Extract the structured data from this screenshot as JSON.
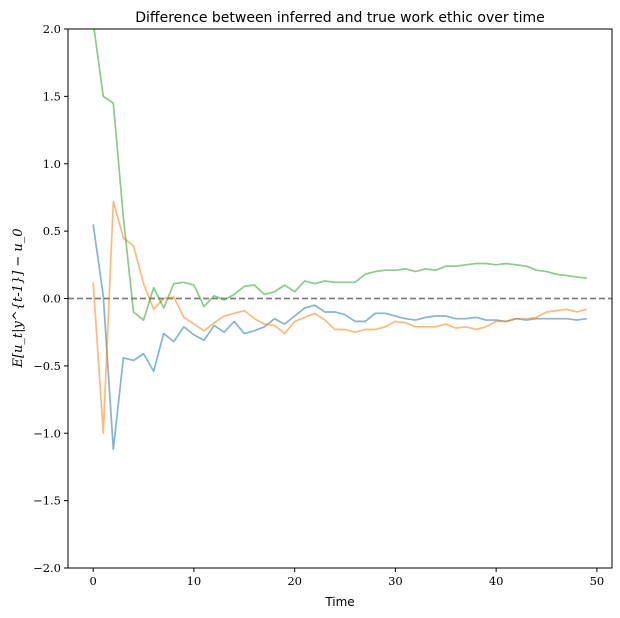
{
  "chart_data": {
    "type": "line",
    "title": "Difference between inferred and true work ethic over time",
    "xlabel": "Time",
    "ylabel": "E[u_t|y^{t-1}] − u_0",
    "xlim": [
      -2.5,
      51.5
    ],
    "ylim": [
      -2.0,
      2.0
    ],
    "xticks": [
      0,
      10,
      20,
      30,
      40,
      50
    ],
    "yticks": [
      -2.0,
      -1.5,
      -1.0,
      -0.5,
      0.0,
      0.5,
      1.0,
      1.5,
      2.0
    ],
    "grid": false,
    "legend": "none",
    "x": [
      0,
      1,
      2,
      3,
      4,
      5,
      6,
      7,
      8,
      9,
      10,
      11,
      12,
      13,
      14,
      15,
      16,
      17,
      18,
      19,
      20,
      21,
      22,
      23,
      24,
      25,
      26,
      27,
      28,
      29,
      30,
      31,
      32,
      33,
      34,
      35,
      36,
      37,
      38,
      39,
      40,
      41,
      42,
      43,
      44,
      45,
      46,
      47,
      48,
      49
    ],
    "reference_line": {
      "y": 0.0,
      "style": "dashed",
      "color": "#808080"
    },
    "series": [
      {
        "color": "#1f77b4",
        "values": [
          0.55,
          0.02,
          -1.12,
          -0.44,
          -0.46,
          -0.41,
          -0.54,
          -0.26,
          -0.32,
          -0.21,
          -0.27,
          -0.31,
          -0.2,
          -0.25,
          -0.17,
          -0.26,
          -0.24,
          -0.21,
          -0.15,
          -0.19,
          -0.13,
          -0.07,
          -0.05,
          -0.1,
          -0.1,
          -0.12,
          -0.17,
          -0.17,
          -0.11,
          -0.11,
          -0.13,
          -0.15,
          -0.16,
          -0.14,
          -0.13,
          -0.13,
          -0.15,
          -0.15,
          -0.14,
          -0.16,
          -0.16,
          -0.17,
          -0.15,
          -0.16,
          -0.15,
          -0.15,
          -0.15,
          -0.15,
          -0.16,
          -0.15
        ]
      },
      {
        "color": "#ff7f0e",
        "values": [
          0.12,
          -1.0,
          0.72,
          0.45,
          0.39,
          0.11,
          -0.08,
          0.0,
          0.01,
          -0.14,
          -0.19,
          -0.24,
          -0.18,
          -0.13,
          -0.11,
          -0.09,
          -0.15,
          -0.19,
          -0.2,
          -0.26,
          -0.17,
          -0.14,
          -0.11,
          -0.16,
          -0.23,
          -0.23,
          -0.25,
          -0.23,
          -0.23,
          -0.21,
          -0.17,
          -0.18,
          -0.21,
          -0.21,
          -0.21,
          -0.19,
          -0.22,
          -0.21,
          -0.23,
          -0.21,
          -0.17,
          -0.17,
          -0.15,
          -0.15,
          -0.14,
          -0.1,
          -0.09,
          -0.08,
          -0.1,
          -0.08
        ]
      },
      {
        "color": "#2ca02c",
        "values": [
          2.05,
          1.5,
          1.45,
          0.6,
          -0.1,
          -0.16,
          0.08,
          -0.07,
          0.11,
          0.12,
          0.1,
          -0.06,
          0.02,
          -0.01,
          0.03,
          0.09,
          0.1,
          0.03,
          0.05,
          0.1,
          0.05,
          0.13,
          0.11,
          0.13,
          0.12,
          0.12,
          0.12,
          0.18,
          0.2,
          0.21,
          0.21,
          0.22,
          0.2,
          0.22,
          0.21,
          0.24,
          0.24,
          0.25,
          0.26,
          0.26,
          0.25,
          0.26,
          0.25,
          0.24,
          0.21,
          0.2,
          0.18,
          0.17,
          0.16,
          0.15
        ]
      }
    ]
  }
}
